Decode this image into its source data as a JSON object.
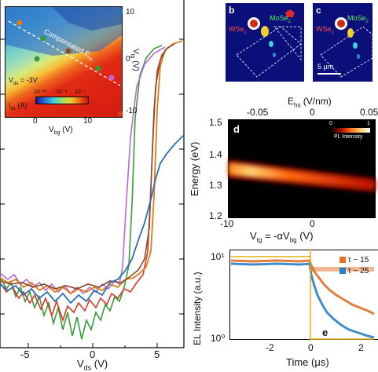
{
  "left_panel": {
    "x_axis": {
      "label_main": "V",
      "label_sub": "ds",
      "label_unit": " (V)",
      "ticks": [
        "-5",
        "0",
        "5"
      ]
    },
    "series_colors": [
      "#2a6fb4",
      "#e07b1a",
      "#d43a2a",
      "#3a9a3a",
      "#b86ad6",
      "#8a4a2a"
    ]
  },
  "inset_a": {
    "compensated_label": "Compensated E",
    "compensated_sub": "hs",
    "vds_label": "V",
    "vds_sub": "ds",
    "vds_value": " = -3V",
    "ids_label": "I",
    "ids_sub": "ds",
    "ids_unit": " (A)",
    "colorbar_ticks": [
      "10⁻¹¹",
      "10⁻⁹",
      "10⁻⁷"
    ],
    "x_label": "V",
    "x_sub": "bg",
    "x_unit": " (V)",
    "x_ticks": [
      "0",
      "10"
    ],
    "y_label": "V",
    "y_sub": "tg",
    "y_unit": " (V)",
    "y_ticks": [
      "10",
      "0",
      "-10"
    ]
  },
  "panel_b": {
    "letter": "b",
    "label_wse2": "WSe",
    "label_mose2": "MoSe",
    "sub": "2"
  },
  "panel_c": {
    "letter": "c",
    "label_wse2": "WSe",
    "label_mose2": "MoSe",
    "sub": "2",
    "scalebar": "5 μm"
  },
  "panel_d": {
    "letter": "d",
    "top_axis_label": "E",
    "top_axis_sub": "hs",
    "top_axis_unit": " (V/nm)",
    "top_ticks": [
      "-0.05",
      "0",
      "0.05"
    ],
    "y_label": "Energy (eV)",
    "y_ticks": [
      "1.5",
      "1.4",
      "1.3",
      "1.2"
    ],
    "x_ticks": [
      "-10",
      "0"
    ],
    "x_label": "V",
    "x_sub": "tg",
    "x_mid": " = -αV",
    "x_sub2": "bg",
    "x_unit": " (V)",
    "colorbar_ticks": [
      "0",
      "1"
    ],
    "colorbar_label": "PL Intensity"
  },
  "panel_e": {
    "letter": "e",
    "y_label": "EL Intensity (a.u.)",
    "y_ticks": [
      "10¹",
      "10⁰"
    ],
    "x_label": "Time (μs)",
    "x_ticks": [
      "-2",
      "0",
      "2"
    ],
    "legend": [
      {
        "label": "τ ~ 15",
        "color": "#e0702a"
      },
      {
        "label": "τ ~ 25",
        "color": "#2a7fc4"
      }
    ]
  }
}
